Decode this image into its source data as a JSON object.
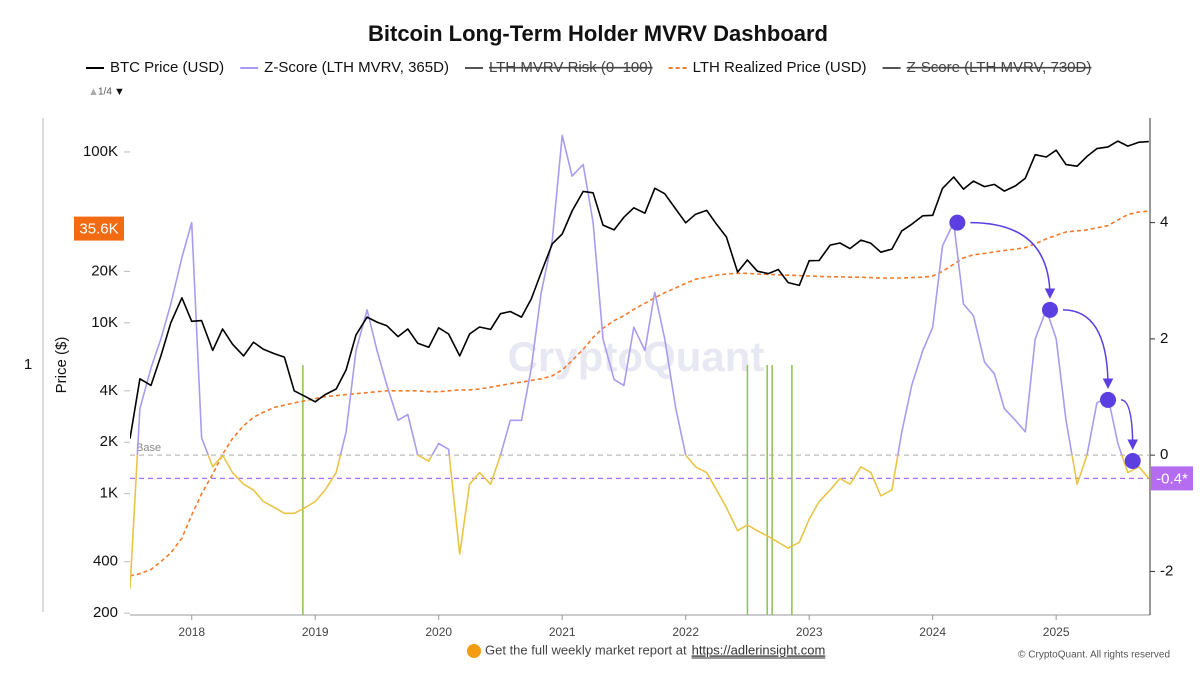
{
  "chart_data": {
    "type": "line",
    "title": "Bitcoin Long-Term Holder MVRV Dashboard",
    "legend_page": "1/4",
    "y_label": "Price ($)",
    "y_label_extra": "1",
    "watermark": "CryptoQuant",
    "footer": {
      "text": "Get the full weekly market report at",
      "link": "https://adlerinsight.com",
      "copyright": "© CryptoQuant. All rights reserved"
    },
    "x": [
      2017.5,
      2017.58,
      2017.67,
      2017.75,
      2017.83,
      2017.92,
      2018,
      2018.08,
      2018.17,
      2018.25,
      2018.33,
      2018.42,
      2018.5,
      2018.58,
      2018.67,
      2018.75,
      2018.83,
      2018.92,
      2019,
      2019.08,
      2019.17,
      2019.25,
      2019.33,
      2019.42,
      2019.5,
      2019.58,
      2019.67,
      2019.75,
      2019.83,
      2019.92,
      2020,
      2020.08,
      2020.17,
      2020.25,
      2020.33,
      2020.42,
      2020.5,
      2020.58,
      2020.67,
      2020.75,
      2020.83,
      2020.92,
      2021,
      2021.08,
      2021.17,
      2021.25,
      2021.33,
      2021.42,
      2021.5,
      2021.58,
      2021.67,
      2021.75,
      2021.83,
      2021.92,
      2022,
      2022.08,
      2022.17,
      2022.25,
      2022.33,
      2022.42,
      2022.5,
      2022.58,
      2022.67,
      2022.75,
      2022.83,
      2022.92,
      2023,
      2023.08,
      2023.17,
      2023.25,
      2023.33,
      2023.42,
      2023.5,
      2023.58,
      2023.67,
      2023.75,
      2023.83,
      2023.92,
      2024,
      2024.08,
      2024.17,
      2024.25,
      2024.33,
      2024.42,
      2024.5,
      2024.58,
      2024.67,
      2024.75,
      2024.83,
      2024.92,
      2025,
      2025.08,
      2025.17,
      2025.25,
      2025.33,
      2025.42,
      2025.5,
      2025.58,
      2025.67,
      2025.75
    ],
    "xlim": [
      2017.5,
      2025.76
    ],
    "xticks": [
      2018,
      2019,
      2020,
      2021,
      2022,
      2023,
      2024,
      2025
    ],
    "ylim": [
      195,
      158000
    ],
    "log_y": true,
    "yticks": [
      {
        "value": 100000,
        "label": "100K"
      },
      {
        "value": 20000,
        "label": "20K"
      },
      {
        "value": 10000,
        "label": "10K"
      },
      {
        "value": 4000,
        "label": "4K"
      },
      {
        "value": 2000,
        "label": "2K"
      },
      {
        "value": 1000,
        "label": "1K"
      },
      400,
      200
    ],
    "y2lim": [
      -2.75,
      5.8
    ],
    "y2ticks": [
      4,
      2,
      0,
      -2
    ],
    "crosshair": {
      "value": 35600,
      "label": "35.6K",
      "color": "#f26b12"
    },
    "series": [
      {
        "name": "BTC Price (USD)",
        "color": "#000000",
        "axis": "y",
        "values": [
          2100,
          4700,
          4300,
          6400,
          10000,
          14000,
          10200,
          10300,
          6900,
          9200,
          7500,
          6400,
          7700,
          7000,
          6600,
          6300,
          4000,
          3700,
          3450,
          3800,
          4100,
          5300,
          8500,
          10800,
          10100,
          9600,
          8300,
          9200,
          7600,
          7200,
          9350,
          8600,
          6400,
          8600,
          9450,
          9150,
          11300,
          11650,
          10800,
          13800,
          19700,
          29000,
          33100,
          45100,
          58800,
          57700,
          37300,
          35000,
          41500,
          47100,
          43800,
          61300,
          57000,
          46300,
          38500,
          43200,
          45500,
          37700,
          31800,
          19800,
          23300,
          20050,
          19400,
          20500,
          17200,
          16550,
          23100,
          23150,
          28500,
          29300,
          27200,
          30500,
          29200,
          25900,
          27000,
          34500,
          37700,
          42300,
          42600,
          61200,
          71300,
          60600,
          67500,
          62700,
          64600,
          59000,
          63300,
          70200,
          96400,
          93400,
          102400,
          84300,
          82500,
          94200,
          104600,
          107100,
          115700,
          108200,
          114000,
          115000
        ]
      },
      {
        "name": "Z-Score (LTH MVRV, 365D)",
        "color": "#a99cf0",
        "below_color": "#e8c547",
        "color_threshold": 0,
        "axis": "y2",
        "values": [
          -2.3,
          0.8,
          1.5,
          2.0,
          2.6,
          3.4,
          4.0,
          0.3,
          -0.2,
          0.0,
          -0.3,
          -0.5,
          -0.6,
          -0.8,
          -0.9,
          -1.0,
          -1.0,
          -0.9,
          -0.8,
          -0.6,
          -0.3,
          0.4,
          1.8,
          2.5,
          1.8,
          1.2,
          0.6,
          0.7,
          0.0,
          -0.1,
          0.2,
          0.1,
          -1.7,
          -0.5,
          -0.3,
          -0.5,
          0.0,
          0.6,
          0.6,
          1.5,
          2.8,
          3.7,
          5.5,
          4.8,
          5.0,
          4.0,
          2.0,
          1.3,
          1.2,
          2.2,
          1.8,
          2.8,
          2.0,
          0.8,
          0.0,
          -0.2,
          -0.3,
          -0.6,
          -0.9,
          -1.3,
          -1.2,
          -1.3,
          -1.4,
          -1.5,
          -1.6,
          -1.5,
          -1.1,
          -0.8,
          -0.6,
          -0.4,
          -0.5,
          -0.2,
          -0.3,
          -0.7,
          -0.6,
          0.4,
          1.2,
          1.8,
          2.2,
          3.6,
          4.0,
          2.6,
          2.4,
          1.6,
          1.4,
          0.8,
          0.6,
          0.4,
          2.0,
          2.5,
          2.0,
          0.6,
          -0.5,
          0.0,
          0.9,
          1.0,
          0.2,
          -0.3,
          -0.2,
          -0.4
        ]
      },
      {
        "name": "LTH MVRV Risk (0–100)",
        "color": "#555555",
        "hidden": true
      },
      {
        "name": "LTH Realized Price (USD)",
        "color": "#f07b2a",
        "dashed": true,
        "axis": "y",
        "values": [
          330,
          340,
          360,
          400,
          450,
          550,
          750,
          1000,
          1300,
          1700,
          2100,
          2500,
          2800,
          3000,
          3200,
          3300,
          3400,
          3500,
          3600,
          3700,
          3750,
          3800,
          3850,
          3900,
          3950,
          4000,
          4000,
          4000,
          4000,
          3950,
          3950,
          4000,
          4050,
          4050,
          4100,
          4200,
          4300,
          4400,
          4500,
          4600,
          4700,
          4900,
          5300,
          6000,
          7000,
          8200,
          9300,
          10300,
          11000,
          12000,
          13000,
          14000,
          15000,
          16000,
          17000,
          18000,
          18500,
          19000,
          19300,
          19500,
          19500,
          19300,
          19200,
          19100,
          19000,
          18900,
          18800,
          18700,
          18600,
          18600,
          18500,
          18500,
          18400,
          18300,
          18300,
          18300,
          18400,
          18500,
          18800,
          20000,
          22000,
          24000,
          25000,
          25500,
          26000,
          26500,
          27000,
          27500,
          29000,
          31000,
          32500,
          34000,
          34500,
          35000,
          36000,
          37000,
          40000,
          43000,
          44500,
          45000
        ]
      },
      {
        "name": "Z-Score (LTH MVRV, 730D)",
        "color": "#555555",
        "hidden": true
      }
    ],
    "ref_lines": [
      {
        "value": 0,
        "label": "Base",
        "color": "#bbbbbb"
      },
      {
        "value": -0.4,
        "label": "-0.4*",
        "color": "#b56cf0"
      }
    ],
    "highlights": {
      "color": "#5b3fe0",
      "x": [
        2024.2,
        2024.95,
        2025.42,
        2025.62
      ],
      "y": [
        4.0,
        2.5,
        0.95,
        -0.1
      ]
    },
    "signals": {
      "color": "#8bc34a",
      "x": [
        2018.9,
        2022.5,
        2022.66,
        2022.7,
        2022.86
      ]
    }
  }
}
